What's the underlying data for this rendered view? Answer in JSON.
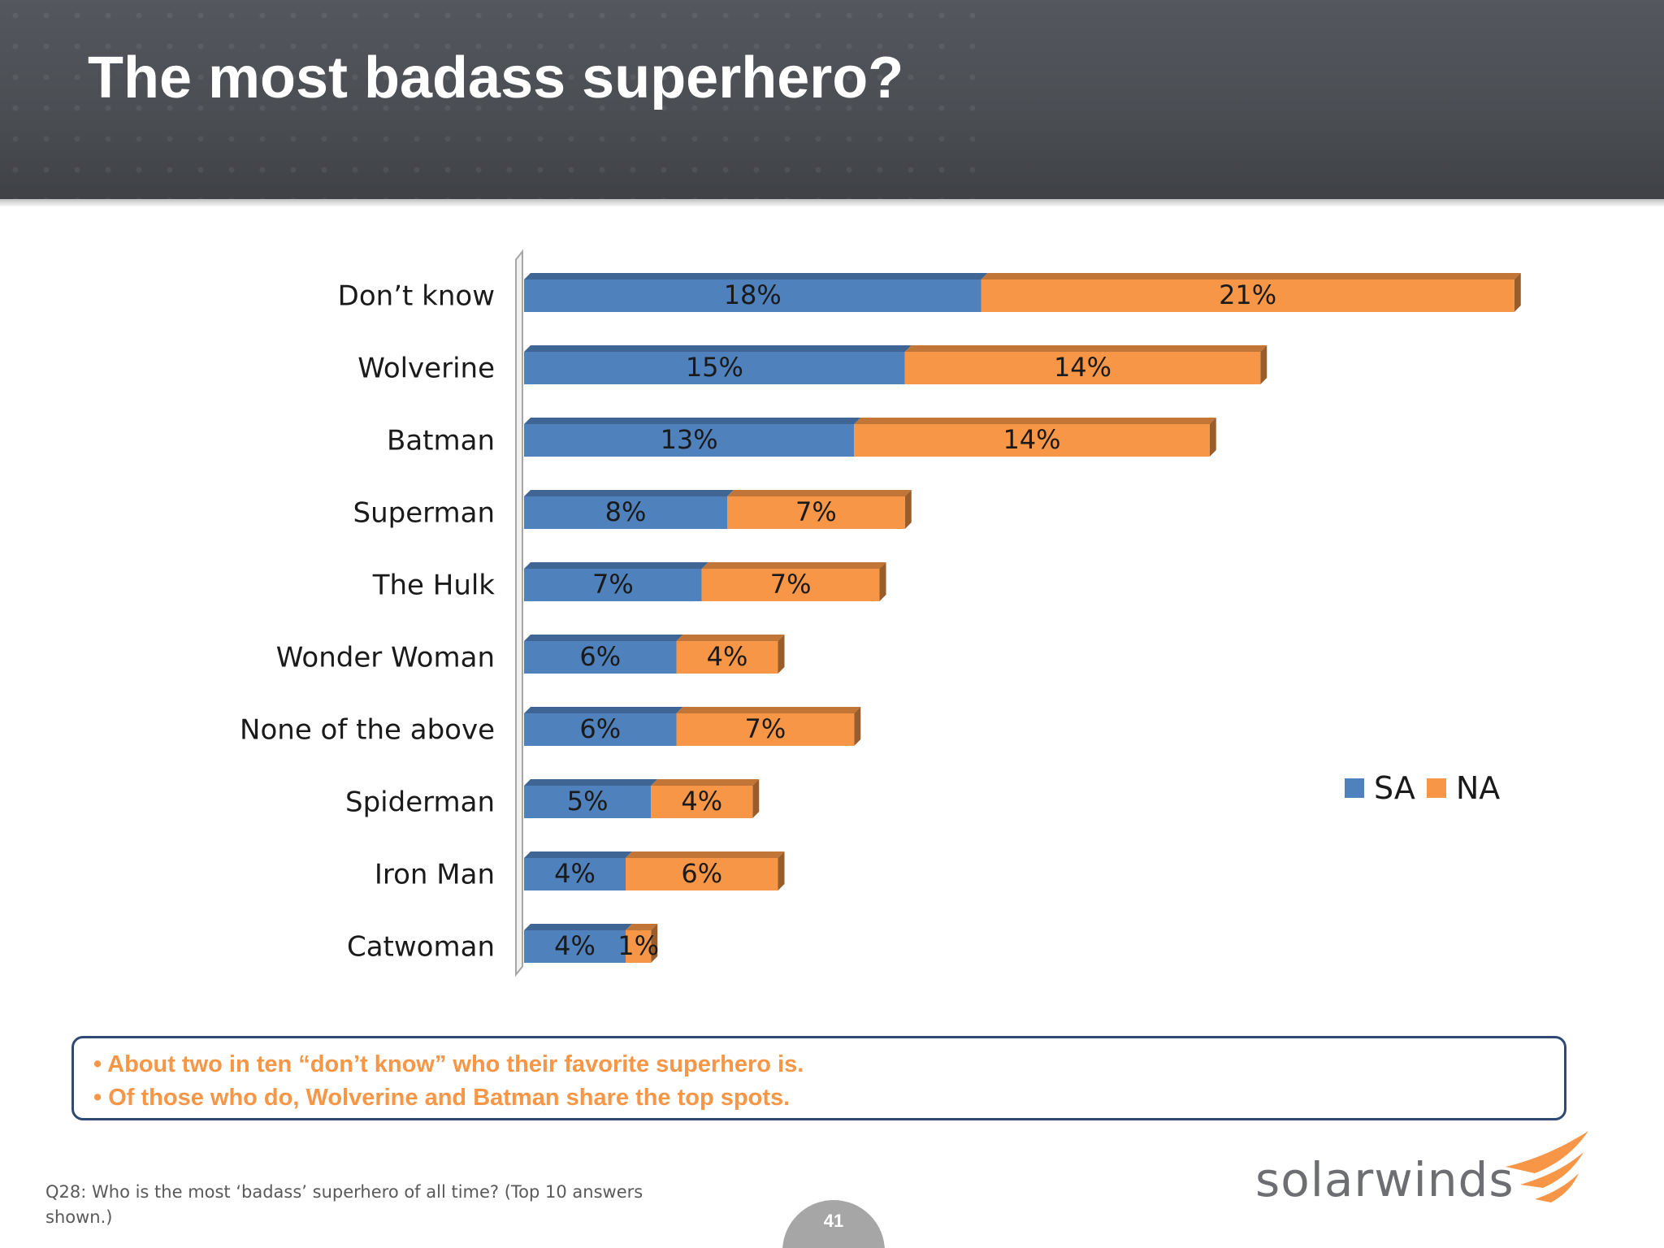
{
  "slide": {
    "title": "The most badass superhero?",
    "page_number": "41"
  },
  "chart_data": {
    "type": "bar",
    "orientation": "horizontal",
    "stacked": true,
    "categories": [
      "Don’t know",
      "Wolverine",
      "Batman",
      "Superman",
      "The Hulk",
      "Wonder Woman",
      "None of  the above",
      "Spiderman",
      "Iron Man",
      "Catwoman"
    ],
    "series": [
      {
        "name": "SA",
        "values": [
          18,
          15,
          13,
          8,
          7,
          6,
          6,
          5,
          4,
          4
        ],
        "labels": [
          "18%",
          "15%",
          "13%",
          "8%",
          "7%",
          "6%",
          "6%",
          "5%",
          "4%",
          "4%"
        ],
        "color": "#4f81bd"
      },
      {
        "name": "NA",
        "values": [
          21,
          14,
          14,
          7,
          7,
          4,
          7,
          4,
          6,
          1
        ],
        "labels": [
          "21%",
          "14%",
          "14%",
          "7%",
          "7%",
          "4%",
          "7%",
          "4%",
          "6%",
          "1%"
        ],
        "color": "#f79646"
      }
    ],
    "legend_position": "right",
    "grid": false
  },
  "callout": {
    "lines": [
      "• About two in ten “don’t know” who their favorite superhero is.",
      "• Of those who do, Wolverine and Batman share the top spots."
    ]
  },
  "footnote": "Q28: Who is the most ‘badass’ superhero of all time?  (Top 10 answers shown.)",
  "logo": {
    "text": "solarwinds",
    "icon": "solarwinds-flame-icon",
    "color": "#f79646"
  }
}
